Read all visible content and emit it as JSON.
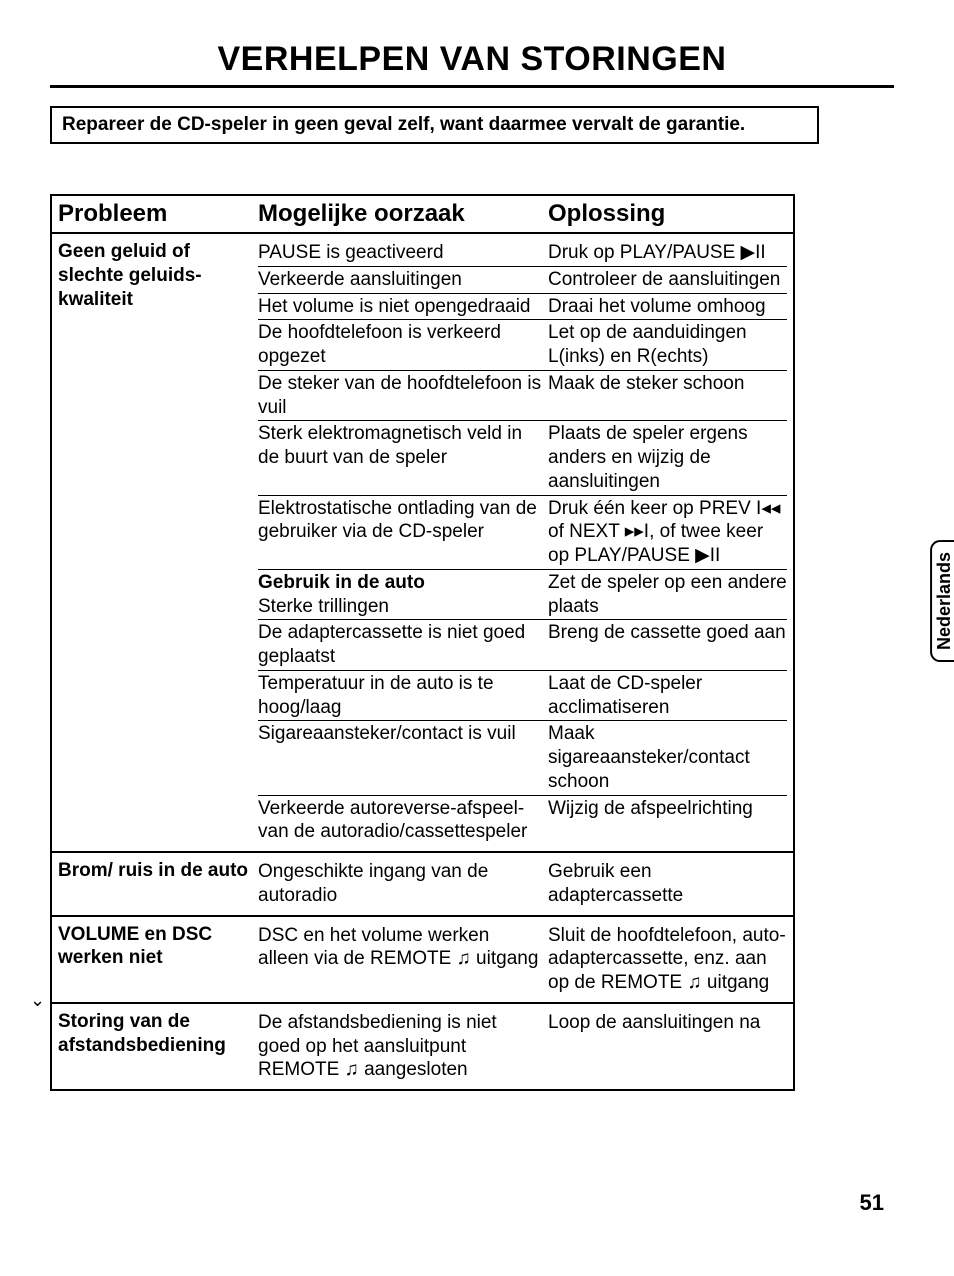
{
  "title": "VERHELPEN VAN STORINGEN",
  "warning": "Repareer de CD-speler in geen geval zelf, want daarmee vervalt de garantie.",
  "language_tab": "Nederlands",
  "page_number": "51",
  "headers": {
    "problem": "Probleem",
    "cause": "Mogelijke oorzaak",
    "solution": "Oplossing"
  },
  "glyphs": {
    "play_pause": "▶II",
    "prev": "I◂◂",
    "next": "▸▸I",
    "headphones": "♫"
  },
  "sections": [
    {
      "problem": "Geen geluid of slechte geluids-kwaliteit",
      "rows": [
        {
          "cause": "PAUSE is geactiveerd",
          "solution_pre": "Druk op PLAY/PAUSE ",
          "solution_glyph": "play_pause",
          "solution_post": ""
        },
        {
          "cause": "Verkeerde aansluitingen",
          "solution_pre": "Controleer de aansluitingen",
          "solution_glyph": "",
          "solution_post": ""
        },
        {
          "cause": "Het volume is niet opengedraaid",
          "solution_pre": "Draai het volume omhoog",
          "solution_glyph": "",
          "solution_post": ""
        },
        {
          "cause": "De hoofdtelefoon is verkeerd opgezet",
          "solution_pre": "Let op de aanduidingen L(inks) en R(echts)",
          "solution_glyph": "",
          "solution_post": ""
        },
        {
          "cause": "De steker van de hoofdtelefoon is vuil",
          "solution_pre": "Maak de steker schoon",
          "solution_glyph": "",
          "solution_post": ""
        },
        {
          "cause": "Sterk elektromagnetisch veld in de buurt van de speler",
          "solution_pre": "Plaats de speler ergens anders en wijzig de aansluitingen",
          "solution_glyph": "",
          "solution_post": ""
        },
        {
          "cause": "Elektrostatische ontlading van de gebruiker via de CD-speler",
          "solution_pre": "Druk één keer op PREV ",
          "solution_glyph": "prev",
          "solution_post": " of NEXT ▸▸I, of twee keer op PLAY/PAUSE ▶II"
        },
        {
          "cause_bold": "Gebruik in de auto",
          "cause_plain": "Sterke trillingen",
          "solution_pre": "Zet de speler op een andere plaats",
          "solution_glyph": "",
          "solution_post": ""
        },
        {
          "cause": "De adaptercassette is niet goed geplaatst",
          "solution_pre": "Breng de cassette goed aan",
          "solution_glyph": "",
          "solution_post": ""
        },
        {
          "cause": "Temperatuur in de auto is te hoog/laag",
          "solution_pre": "Laat de CD-speler acclimatiseren",
          "solution_glyph": "",
          "solution_post": ""
        },
        {
          "cause": "Sigareaansteker/contact is vuil",
          "solution_pre": "Maak sigareaansteker/contact schoon",
          "solution_glyph": "",
          "solution_post": ""
        },
        {
          "cause": "Verkeerde autoreverse-afspeel- van de autoradio/cassettespeler",
          "solution_pre": "Wijzig de afspeelrichting",
          "solution_glyph": "",
          "solution_post": "",
          "last": true
        }
      ]
    },
    {
      "problem": "Brom/ ruis in de auto",
      "rows": [
        {
          "cause": "Ongeschikte ingang van de autoradio",
          "solution_pre": "Gebruik een adaptercassette",
          "solution_glyph": "",
          "solution_post": "",
          "last": true
        }
      ]
    },
    {
      "problem": "VOLUME en DSC werken niet",
      "rows": [
        {
          "cause": "DSC en het volume werken alleen via de REMOTE ♫  uitgang",
          "solution_pre": "Sluit de hoofdtelefoon, auto-adaptercassette, enz. aan op de REMOTE ♫  uitgang",
          "solution_glyph": "",
          "solution_post": "",
          "last": true
        }
      ]
    },
    {
      "problem": "Storing van de afstandsbediening",
      "rows": [
        {
          "cause": "De afstandsbediening is niet goed op het aansluitpunt REMOTE ♫  aangesloten",
          "solution_pre": "Loop de aansluitingen na",
          "solution_glyph": "",
          "solution_post": "",
          "last": true
        }
      ],
      "last": true
    }
  ]
}
